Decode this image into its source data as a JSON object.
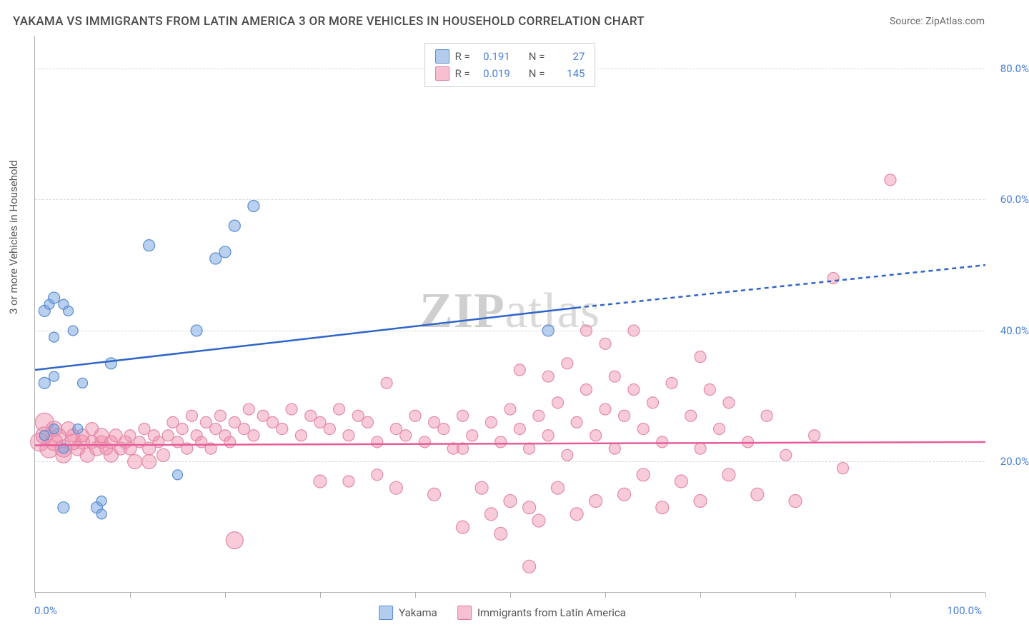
{
  "title": "YAKAMA VS IMMIGRANTS FROM LATIN AMERICA 3 OR MORE VEHICLES IN HOUSEHOLD CORRELATION CHART",
  "source": "Source: ZipAtlas.com",
  "axis": {
    "y_title": "3 or more Vehicles in Household",
    "x_min_label": "0.0%",
    "x_max_label": "100.0%",
    "y_ticks": [
      {
        "value": 20,
        "label": "20.0%"
      },
      {
        "value": 40,
        "label": "40.0%"
      },
      {
        "value": 60,
        "label": "60.0%"
      },
      {
        "value": 80,
        "label": "80.0%"
      }
    ],
    "xlim": [
      0,
      100
    ],
    "ylim": [
      0,
      85
    ],
    "x_tick_positions": [
      0,
      10,
      20,
      30,
      40,
      50,
      60,
      70,
      80,
      90,
      100
    ]
  },
  "legend_stats": {
    "labels": {
      "r": "R =",
      "n": "N ="
    },
    "series": [
      {
        "color_key": "blue",
        "r": "0.191",
        "n": "27"
      },
      {
        "color_key": "pink",
        "r": "0.019",
        "n": "145"
      }
    ]
  },
  "bottom_legend": [
    {
      "color_key": "blue",
      "label": "Yakama"
    },
    {
      "color_key": "pink",
      "label": "Immigrants from Latin America"
    }
  ],
  "watermark": {
    "bold": "ZIP",
    "rest": "atlas"
  },
  "style": {
    "colors": {
      "blue_fill": "rgba(116,162,222,0.50)",
      "blue_stroke": "#5a8cd2",
      "pink_fill": "rgba(240,140,170,0.45)",
      "pink_stroke": "#e28aa8",
      "trend_blue": "#2f64c9",
      "trend_pink": "#e65d9a",
      "grid": "#d8d8d8",
      "axis": "#b0b0b0",
      "text": "#5a5a5a",
      "tick_text": "#4a7fd8",
      "background": "#ffffff"
    },
    "marker_radius_default": 8,
    "trend_line_width": 2.5,
    "title_fontsize": 17,
    "tick_fontsize": 15
  },
  "trend_lines": {
    "blue": {
      "solid": {
        "x1": 0,
        "y1": 34,
        "x2": 57,
        "y2": 43.5
      },
      "dashed": {
        "x1": 57,
        "y1": 43.5,
        "x2": 100,
        "y2": 50
      }
    },
    "pink": {
      "solid": {
        "x1": 0,
        "y1": 22.5,
        "x2": 100,
        "y2": 23
      }
    }
  },
  "series": {
    "blue": {
      "points": [
        {
          "x": 1,
          "y": 43,
          "r": 8
        },
        {
          "x": 1.5,
          "y": 44,
          "r": 7
        },
        {
          "x": 2,
          "y": 45,
          "r": 8
        },
        {
          "x": 3,
          "y": 44,
          "r": 7
        },
        {
          "x": 3.5,
          "y": 43,
          "r": 7
        },
        {
          "x": 1,
          "y": 32,
          "r": 8
        },
        {
          "x": 2,
          "y": 33,
          "r": 7
        },
        {
          "x": 1,
          "y": 24,
          "r": 7
        },
        {
          "x": 2,
          "y": 25,
          "r": 7
        },
        {
          "x": 4.5,
          "y": 25,
          "r": 7
        },
        {
          "x": 3,
          "y": 13,
          "r": 8
        },
        {
          "x": 6.5,
          "y": 13,
          "r": 8
        },
        {
          "x": 7,
          "y": 12,
          "r": 7
        },
        {
          "x": 8,
          "y": 35,
          "r": 8
        },
        {
          "x": 12,
          "y": 53,
          "r": 8
        },
        {
          "x": 15,
          "y": 18,
          "r": 7
        },
        {
          "x": 17,
          "y": 40,
          "r": 8
        },
        {
          "x": 19,
          "y": 51,
          "r": 8
        },
        {
          "x": 20,
          "y": 52,
          "r": 8
        },
        {
          "x": 21,
          "y": 56,
          "r": 8
        },
        {
          "x": 23,
          "y": 59,
          "r": 8
        },
        {
          "x": 54,
          "y": 40,
          "r": 8
        },
        {
          "x": 2,
          "y": 39,
          "r": 7
        },
        {
          "x": 4,
          "y": 40,
          "r": 7
        },
        {
          "x": 5,
          "y": 32,
          "r": 7
        },
        {
          "x": 3,
          "y": 22,
          "r": 7
        },
        {
          "x": 7,
          "y": 14,
          "r": 7
        }
      ]
    },
    "pink": {
      "points": [
        {
          "x": 0.5,
          "y": 23,
          "r": 13
        },
        {
          "x": 1,
          "y": 24,
          "r": 12
        },
        {
          "x": 1,
          "y": 26,
          "r": 13
        },
        {
          "x": 1.5,
          "y": 22,
          "r": 13
        },
        {
          "x": 2,
          "y": 25,
          "r": 11
        },
        {
          "x": 2,
          "y": 23,
          "r": 12
        },
        {
          "x": 2.5,
          "y": 24,
          "r": 10
        },
        {
          "x": 3,
          "y": 22,
          "r": 12
        },
        {
          "x": 3,
          "y": 21,
          "r": 11
        },
        {
          "x": 3.5,
          "y": 25,
          "r": 10
        },
        {
          "x": 4,
          "y": 23,
          "r": 11
        },
        {
          "x": 4,
          "y": 24,
          "r": 9
        },
        {
          "x": 4.5,
          "y": 22,
          "r": 10
        },
        {
          "x": 5,
          "y": 23,
          "r": 10
        },
        {
          "x": 5,
          "y": 24,
          "r": 9
        },
        {
          "x": 5.5,
          "y": 21,
          "r": 10
        },
        {
          "x": 6,
          "y": 23,
          "r": 9
        },
        {
          "x": 6,
          "y": 25,
          "r": 9
        },
        {
          "x": 6.5,
          "y": 22,
          "r": 10
        },
        {
          "x": 7,
          "y": 23,
          "r": 9
        },
        {
          "x": 7,
          "y": 24,
          "r": 10
        },
        {
          "x": 7.5,
          "y": 22,
          "r": 9
        },
        {
          "x": 8,
          "y": 23,
          "r": 9
        },
        {
          "x": 8.5,
          "y": 24,
          "r": 9
        },
        {
          "x": 9,
          "y": 22,
          "r": 9
        },
        {
          "x": 9.5,
          "y": 23,
          "r": 9
        },
        {
          "x": 10,
          "y": 24,
          "r": 8
        },
        {
          "x": 10,
          "y": 22,
          "r": 9
        },
        {
          "x": 10.5,
          "y": 20,
          "r": 10
        },
        {
          "x": 11,
          "y": 23,
          "r": 8
        },
        {
          "x": 11.5,
          "y": 25,
          "r": 8
        },
        {
          "x": 12,
          "y": 22,
          "r": 9
        },
        {
          "x": 12.5,
          "y": 24,
          "r": 8
        },
        {
          "x": 13,
          "y": 23,
          "r": 8
        },
        {
          "x": 13.5,
          "y": 21,
          "r": 9
        },
        {
          "x": 14,
          "y": 24,
          "r": 8
        },
        {
          "x": 14.5,
          "y": 26,
          "r": 8
        },
        {
          "x": 15,
          "y": 23,
          "r": 8
        },
        {
          "x": 15.5,
          "y": 25,
          "r": 8
        },
        {
          "x": 16,
          "y": 22,
          "r": 8
        },
        {
          "x": 16.5,
          "y": 27,
          "r": 8
        },
        {
          "x": 17,
          "y": 24,
          "r": 8
        },
        {
          "x": 17.5,
          "y": 23,
          "r": 8
        },
        {
          "x": 18,
          "y": 26,
          "r": 8
        },
        {
          "x": 18.5,
          "y": 22,
          "r": 8
        },
        {
          "x": 19,
          "y": 25,
          "r": 8
        },
        {
          "x": 19.5,
          "y": 27,
          "r": 8
        },
        {
          "x": 20,
          "y": 24,
          "r": 8
        },
        {
          "x": 20.5,
          "y": 23,
          "r": 8
        },
        {
          "x": 21,
          "y": 26,
          "r": 8
        },
        {
          "x": 21,
          "y": 8,
          "r": 12
        },
        {
          "x": 22,
          "y": 25,
          "r": 8
        },
        {
          "x": 22.5,
          "y": 28,
          "r": 8
        },
        {
          "x": 23,
          "y": 24,
          "r": 8
        },
        {
          "x": 24,
          "y": 27,
          "r": 8
        },
        {
          "x": 25,
          "y": 26,
          "r": 8
        },
        {
          "x": 26,
          "y": 25,
          "r": 8
        },
        {
          "x": 27,
          "y": 28,
          "r": 8
        },
        {
          "x": 28,
          "y": 24,
          "r": 8
        },
        {
          "x": 29,
          "y": 27,
          "r": 8
        },
        {
          "x": 30,
          "y": 26,
          "r": 8
        },
        {
          "x": 30,
          "y": 17,
          "r": 9
        },
        {
          "x": 31,
          "y": 25,
          "r": 8
        },
        {
          "x": 32,
          "y": 28,
          "r": 8
        },
        {
          "x": 33,
          "y": 24,
          "r": 8
        },
        {
          "x": 34,
          "y": 27,
          "r": 8
        },
        {
          "x": 35,
          "y": 26,
          "r": 8
        },
        {
          "x": 36,
          "y": 23,
          "r": 8
        },
        {
          "x": 37,
          "y": 32,
          "r": 8
        },
        {
          "x": 38,
          "y": 25,
          "r": 8
        },
        {
          "x": 38,
          "y": 16,
          "r": 9
        },
        {
          "x": 39,
          "y": 24,
          "r": 8
        },
        {
          "x": 40,
          "y": 27,
          "r": 8
        },
        {
          "x": 41,
          "y": 23,
          "r": 8
        },
        {
          "x": 42,
          "y": 26,
          "r": 8
        },
        {
          "x": 42,
          "y": 15,
          "r": 9
        },
        {
          "x": 43,
          "y": 25,
          "r": 8
        },
        {
          "x": 44,
          "y": 22,
          "r": 8
        },
        {
          "x": 45,
          "y": 27,
          "r": 8
        },
        {
          "x": 45,
          "y": 10,
          "r": 9
        },
        {
          "x": 46,
          "y": 24,
          "r": 8
        },
        {
          "x": 47,
          "y": 16,
          "r": 9
        },
        {
          "x": 48,
          "y": 26,
          "r": 8
        },
        {
          "x": 48,
          "y": 12,
          "r": 9
        },
        {
          "x": 49,
          "y": 23,
          "r": 8
        },
        {
          "x": 49,
          "y": 9,
          "r": 9
        },
        {
          "x": 50,
          "y": 28,
          "r": 8
        },
        {
          "x": 50,
          "y": 14,
          "r": 9
        },
        {
          "x": 51,
          "y": 25,
          "r": 8
        },
        {
          "x": 51,
          "y": 34,
          "r": 8
        },
        {
          "x": 52,
          "y": 22,
          "r": 8
        },
        {
          "x": 52,
          "y": 13,
          "r": 9
        },
        {
          "x": 52,
          "y": 4,
          "r": 9
        },
        {
          "x": 53,
          "y": 27,
          "r": 8
        },
        {
          "x": 53,
          "y": 11,
          "r": 9
        },
        {
          "x": 54,
          "y": 24,
          "r": 8
        },
        {
          "x": 54,
          "y": 33,
          "r": 8
        },
        {
          "x": 55,
          "y": 16,
          "r": 9
        },
        {
          "x": 55,
          "y": 29,
          "r": 8
        },
        {
          "x": 56,
          "y": 21,
          "r": 8
        },
        {
          "x": 56,
          "y": 35,
          "r": 8
        },
        {
          "x": 57,
          "y": 26,
          "r": 8
        },
        {
          "x": 57,
          "y": 12,
          "r": 9
        },
        {
          "x": 58,
          "y": 31,
          "r": 8
        },
        {
          "x": 58,
          "y": 40,
          "r": 8
        },
        {
          "x": 59,
          "y": 24,
          "r": 8
        },
        {
          "x": 59,
          "y": 14,
          "r": 9
        },
        {
          "x": 60,
          "y": 28,
          "r": 8
        },
        {
          "x": 60,
          "y": 38,
          "r": 8
        },
        {
          "x": 61,
          "y": 22,
          "r": 8
        },
        {
          "x": 61,
          "y": 33,
          "r": 8
        },
        {
          "x": 62,
          "y": 27,
          "r": 8
        },
        {
          "x": 62,
          "y": 15,
          "r": 9
        },
        {
          "x": 63,
          "y": 31,
          "r": 8
        },
        {
          "x": 63,
          "y": 40,
          "r": 8
        },
        {
          "x": 64,
          "y": 25,
          "r": 8
        },
        {
          "x": 64,
          "y": 18,
          "r": 9
        },
        {
          "x": 65,
          "y": 29,
          "r": 8
        },
        {
          "x": 66,
          "y": 23,
          "r": 8
        },
        {
          "x": 66,
          "y": 13,
          "r": 9
        },
        {
          "x": 67,
          "y": 32,
          "r": 8
        },
        {
          "x": 68,
          "y": 17,
          "r": 9
        },
        {
          "x": 69,
          "y": 27,
          "r": 8
        },
        {
          "x": 70,
          "y": 22,
          "r": 8
        },
        {
          "x": 70,
          "y": 14,
          "r": 9
        },
        {
          "x": 71,
          "y": 31,
          "r": 8
        },
        {
          "x": 72,
          "y": 25,
          "r": 8
        },
        {
          "x": 73,
          "y": 18,
          "r": 9
        },
        {
          "x": 73,
          "y": 29,
          "r": 8
        },
        {
          "x": 75,
          "y": 23,
          "r": 8
        },
        {
          "x": 76,
          "y": 15,
          "r": 9
        },
        {
          "x": 77,
          "y": 27,
          "r": 8
        },
        {
          "x": 79,
          "y": 21,
          "r": 8
        },
        {
          "x": 80,
          "y": 14,
          "r": 9
        },
        {
          "x": 82,
          "y": 24,
          "r": 8
        },
        {
          "x": 84,
          "y": 48,
          "r": 8
        },
        {
          "x": 85,
          "y": 19,
          "r": 8
        },
        {
          "x": 90,
          "y": 63,
          "r": 8
        },
        {
          "x": 70,
          "y": 36,
          "r": 8
        },
        {
          "x": 45,
          "y": 22,
          "r": 8
        },
        {
          "x": 36,
          "y": 18,
          "r": 8
        },
        {
          "x": 33,
          "y": 17,
          "r": 8
        },
        {
          "x": 12,
          "y": 20,
          "r": 10
        },
        {
          "x": 8,
          "y": 21,
          "r": 10
        }
      ]
    }
  }
}
